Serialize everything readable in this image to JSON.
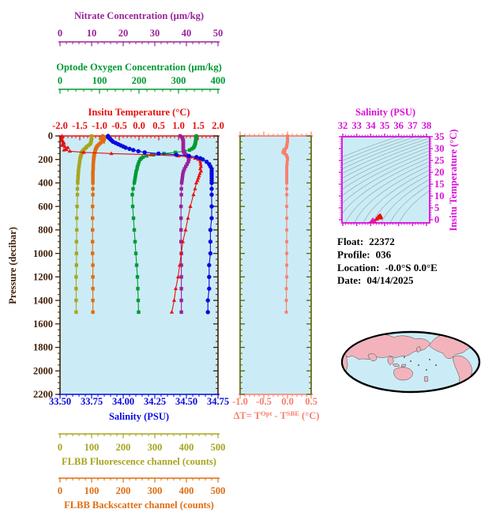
{
  "colors": {
    "nitrate": "#9b219b",
    "oxygen": "#009a33",
    "temperature": "#e81010",
    "pressure": "#3f1f08",
    "salinity": "#0a0ae0",
    "delta_t": "#f97e6d",
    "mid_frame": "#5e5e00",
    "fluorescence": "#a8a51f",
    "backscatter": "#e06d12",
    "ts_frame": "#d911d9",
    "plot_bg": "#cbecf6",
    "contour": "#9ab3bb",
    "map_land": "#f2b3bc",
    "map_ocean": "#cbecf6",
    "map_outline": "#000000",
    "info_text": "#000000"
  },
  "axes": {
    "nitrate": {
      "title": "Nitrate Concentration (μm/kg)",
      "tick_labels": [
        "0",
        "10",
        "20",
        "30",
        "40",
        "50"
      ],
      "range": [
        0,
        50
      ]
    },
    "oxygen": {
      "title": "Optode Oxygen Concentration (μm/kg)",
      "tick_labels": [
        "0",
        "100",
        "200",
        "300",
        "400"
      ],
      "range": [
        0,
        400
      ]
    },
    "temperature": {
      "title": "Insitu Temperature (°C)",
      "tick_labels": [
        "-2.0",
        "-1.5",
        "-1.0",
        "-0.5",
        "0.0",
        "0.5",
        "1.0",
        "1.5",
        "2.0"
      ],
      "range": [
        -2,
        2
      ]
    },
    "pressure": {
      "title": "Pressure (decibar)",
      "tick_labels": [
        "0",
        "200",
        "400",
        "600",
        "800",
        "1000",
        "1200",
        "1400",
        "1600",
        "1800",
        "2000",
        "2200"
      ],
      "range": [
        0,
        2200
      ]
    },
    "salinity": {
      "title": "Salinity (PSU)",
      "tick_labels": [
        "33.50",
        "33.75",
        "34.00",
        "34.25",
        "34.50",
        "34.75"
      ],
      "range": [
        33.5,
        34.75
      ]
    },
    "delta_t": {
      "title_segments": [
        {
          "t": "ΔT= T"
        },
        {
          "t": "Opt",
          "sup": true
        },
        {
          "t": " - T"
        },
        {
          "t": "SBE",
          "sup": true
        },
        {
          "t": " (°C)"
        }
      ],
      "tick_labels": [
        "-1.0",
        "-0.5",
        "0.0",
        "0.5"
      ],
      "range": [
        -1.25,
        0.625
      ]
    },
    "fluorescence": {
      "title": "FLBB Fluorescence channel (counts)",
      "tick_labels": [
        "0",
        "100",
        "200",
        "300",
        "400",
        "500"
      ],
      "range": [
        0,
        500
      ]
    },
    "backscatter": {
      "title": "FLBB Backscatter channel (counts)",
      "tick_labels": [
        "0",
        "100",
        "200",
        "300",
        "400",
        "500"
      ],
      "range": [
        0,
        500
      ]
    },
    "ts_salinity": {
      "title": "Salinity (PSU)",
      "tick_labels": [
        "32",
        "33",
        "34",
        "35",
        "36",
        "37",
        "38"
      ],
      "range": [
        32,
        38
      ]
    },
    "ts_temperature": {
      "title": "Insitu Temperature (°C)",
      "tick_labels": [
        "0",
        "5",
        "10",
        "15",
        "20",
        "25",
        "30",
        "35"
      ],
      "range": [
        0,
        35
      ]
    }
  },
  "info": {
    "lines": [
      {
        "label": "Float:",
        "value": "22372"
      },
      {
        "label": "Profile:",
        "value": "036"
      },
      {
        "label": "Location:",
        "value": "-0.0°S  0.0°E"
      },
      {
        "label": "Date:",
        "value": "04/14/2025"
      }
    ]
  },
  "chart_data": [
    {
      "id": "profile-plot",
      "type": "line",
      "ylabel": "Pressure (decibar)",
      "ylim": [
        0,
        2200
      ],
      "y_inverted": true,
      "pressures_db": [
        0,
        10,
        20,
        30,
        40,
        50,
        60,
        70,
        80,
        90,
        100,
        110,
        120,
        130,
        140,
        150,
        160,
        170,
        180,
        190,
        200,
        220,
        240,
        260,
        280,
        300,
        320,
        340,
        360,
        380,
        400,
        450,
        500,
        600,
        700,
        800,
        900,
        1000,
        1100,
        1200,
        1300,
        1400,
        1500
      ],
      "series": [
        {
          "key": "fluorescence",
          "name": "FLBB Fluorescence channel",
          "units": "counts",
          "xlim": [
            0,
            500
          ],
          "color": "#a8a51f",
          "marker": "square",
          "values": [
            100,
            100,
            100,
            99,
            99,
            98,
            97,
            95,
            90,
            85,
            82,
            78,
            74,
            71,
            69,
            68,
            67,
            66,
            65,
            64,
            63,
            62,
            61,
            60,
            59,
            58,
            58,
            57,
            57,
            56,
            56,
            55,
            55,
            54,
            53,
            53,
            52,
            52,
            52,
            51,
            51,
            51,
            51
          ]
        },
        {
          "key": "backscatter",
          "name": "FLBB Backscatter channel",
          "units": "counts",
          "xlim": [
            0,
            500
          ],
          "color": "#e06d12",
          "marker": "square",
          "values": [
            135,
            146,
            130,
            140,
            133,
            137,
            128,
            124,
            120,
            117,
            115,
            113,
            112,
            111,
            110,
            109,
            108,
            108,
            107,
            107,
            106,
            106,
            105,
            105,
            105,
            104,
            104,
            104,
            104,
            104,
            104,
            104,
            104,
            103,
            103,
            103,
            103,
            103,
            104,
            104,
            104,
            104,
            104
          ]
        },
        {
          "key": "oxygen",
          "name": "Optode Oxygen Concentration",
          "units": "μm/kg",
          "xlim": [
            0,
            400
          ],
          "color": "#009a33",
          "marker": "square",
          "values": [
            345,
            345,
            345,
            344,
            344,
            343,
            343,
            342,
            341,
            340,
            338,
            334,
            328,
            315,
            292,
            263,
            237,
            219,
            210,
            206,
            203,
            200,
            198,
            196,
            195,
            193,
            192,
            191,
            190,
            189,
            188,
            185,
            183,
            184,
            186,
            188,
            190,
            192,
            194,
            196,
            197,
            198,
            199
          ]
        },
        {
          "key": "nitrate",
          "name": "Nitrate Concentration",
          "units": "μm/kg",
          "xlim": [
            0,
            50
          ],
          "color": "#9b219b",
          "marker": "square",
          "values": [
            38.0,
            38.5,
            38.8,
            38.9,
            39.0,
            39.0,
            39.0,
            39.0,
            39.0,
            39.0,
            39.0,
            39.0,
            39.0,
            39.1,
            39.2,
            39.5,
            39.9,
            40.3,
            40.6,
            40.7,
            40.8,
            40.6,
            40.2,
            39.8,
            39.4,
            39.1,
            38.9,
            38.8,
            38.7,
            38.6,
            38.5,
            38.4,
            38.4,
            38.3,
            38.3,
            38.3,
            38.3,
            38.4,
            38.4,
            38.4,
            38.4,
            38.4,
            38.4
          ]
        },
        {
          "key": "temperature",
          "name": "Insitu Temperature",
          "units": "°C",
          "xlim": [
            -2,
            2
          ],
          "color": "#e81010",
          "marker": "triangle",
          "values": [
            -1.95,
            -1.95,
            -1.96,
            -1.97,
            -1.95,
            -1.92,
            -1.9,
            -1.93,
            -1.95,
            -1.88,
            -1.8,
            -1.85,
            -1.9,
            -1.75,
            -1.4,
            -0.7,
            0.3,
            1.0,
            1.3,
            1.42,
            1.5,
            1.55,
            1.56,
            1.57,
            1.55,
            1.57,
            1.54,
            1.52,
            1.5,
            1.48,
            1.45,
            1.42,
            1.38,
            1.3,
            1.24,
            1.18,
            1.11,
            1.07,
            1.03,
            0.99,
            0.93,
            0.89,
            0.83
          ]
        },
        {
          "key": "salinity",
          "name": "Salinity",
          "units": "PSU",
          "xlim": [
            33.5,
            34.75
          ],
          "color": "#0a0ae0",
          "marker": "circle",
          "values": [
            33.88,
            33.88,
            33.89,
            33.9,
            33.91,
            33.92,
            33.94,
            33.96,
            33.98,
            34.0,
            34.02,
            34.05,
            34.08,
            34.12,
            34.17,
            34.28,
            34.42,
            34.52,
            34.58,
            34.61,
            34.63,
            34.66,
            34.68,
            34.69,
            34.7,
            34.7,
            34.7,
            34.7,
            34.7,
            34.7,
            34.7,
            34.7,
            34.7,
            34.7,
            34.7,
            34.69,
            34.69,
            34.69,
            34.68,
            34.68,
            34.68,
            34.67,
            34.67
          ]
        }
      ]
    },
    {
      "id": "delta-t-panel",
      "type": "line",
      "xlabel": "ΔT= TOpt - TSBE (°C)",
      "xlim": [
        -1.25,
        0.625
      ],
      "ylim": [
        0,
        2200
      ],
      "color": "#f97e6d",
      "marker": "square",
      "pressures_db": [
        0,
        10,
        20,
        30,
        40,
        50,
        60,
        70,
        80,
        90,
        100,
        110,
        120,
        130,
        140,
        150,
        160,
        170,
        180,
        190,
        200,
        220,
        240,
        260,
        280,
        300,
        320,
        340,
        360,
        380,
        400,
        450,
        500,
        600,
        700,
        800,
        900,
        1000,
        1100,
        1200,
        1300,
        1400,
        1500
      ],
      "values": [
        0.0,
        0.0,
        0.0,
        0.0,
        0.0,
        0.0,
        -0.01,
        -0.01,
        -0.02,
        -0.02,
        -0.03,
        -0.06,
        -0.1,
        -0.07,
        -0.12,
        -0.08,
        -0.04,
        -0.02,
        -0.01,
        0.0,
        0.0,
        -0.01,
        -0.01,
        -0.02,
        -0.02,
        -0.02,
        -0.02,
        -0.02,
        -0.02,
        -0.02,
        -0.02,
        -0.02,
        -0.02,
        -0.02,
        -0.02,
        -0.02,
        -0.02,
        -0.02,
        -0.02,
        -0.02,
        -0.03,
        -0.03,
        -0.03
      ]
    },
    {
      "id": "ts-diagram",
      "type": "scatter",
      "xlabel": "Salinity (PSU)",
      "ylabel": "Insitu Temperature (°C)",
      "xlim": [
        32,
        38
      ],
      "ylim": [
        0,
        35
      ],
      "points_note": "pairs of (Salinity, Insitu Temperature) from profile-plot series",
      "marker_color": "#e81010",
      "highlight_marker_color": "#e811c8",
      "isopycnals": {
        "count": 18,
        "color": "#9ab3bb"
      }
    }
  ]
}
